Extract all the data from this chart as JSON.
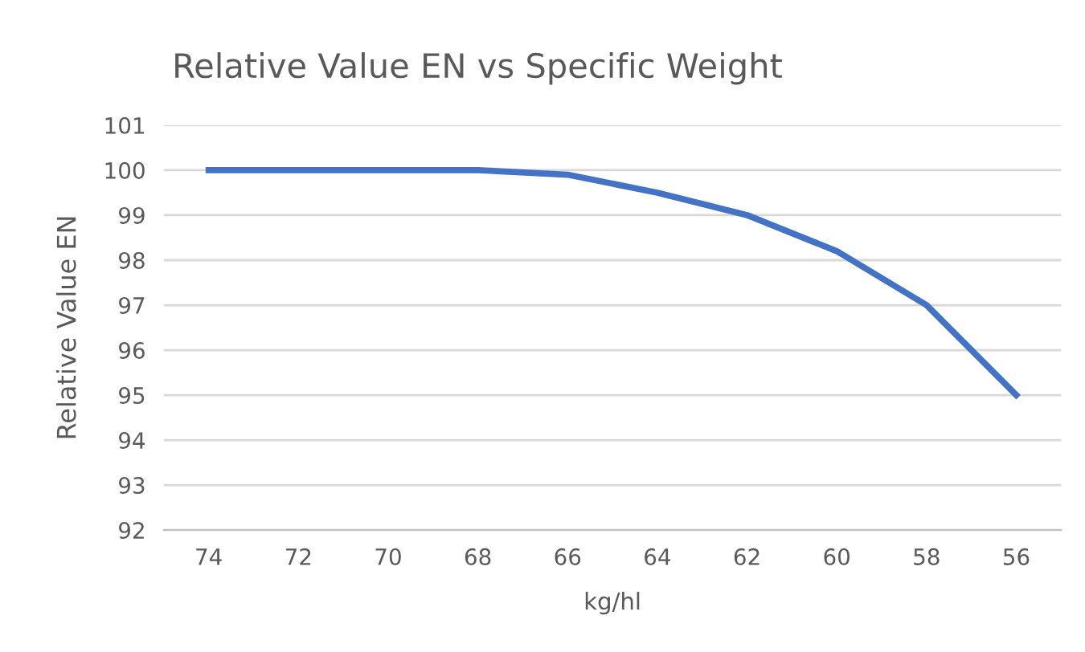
{
  "chart_data": {
    "type": "line",
    "title": "Relative Value EN vs Specific Weight",
    "xlabel": "kg/hl",
    "ylabel": "Relative Value EN",
    "categories": [
      "74",
      "72",
      "70",
      "68",
      "66",
      "64",
      "62",
      "60",
      "58",
      "56"
    ],
    "series": [
      {
        "color": "#4472c4",
        "values": [
          100,
          100,
          100,
          100,
          99.9,
          99.5,
          99,
          98.2,
          97,
          95
        ]
      }
    ],
    "ylim": [
      92,
      101
    ],
    "yticks": [
      92,
      93,
      94,
      95,
      96,
      97,
      98,
      99,
      100,
      101
    ],
    "grid": "y",
    "marker": "none",
    "line_style": "solid"
  }
}
